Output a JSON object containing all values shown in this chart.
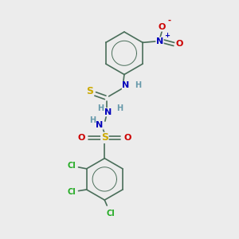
{
  "bg_color": "#ececec",
  "bond_color": "#4a6e5a",
  "bond_width": 1.2,
  "atom_colors": {
    "C": "#4a6e5a",
    "N": "#0000bb",
    "O": "#cc0000",
    "S": "#ccaa00",
    "Cl": "#22aa22",
    "H": "#6699aa"
  },
  "font_size": 7,
  "fig_size": [
    3.0,
    3.0
  ],
  "dpi": 100
}
